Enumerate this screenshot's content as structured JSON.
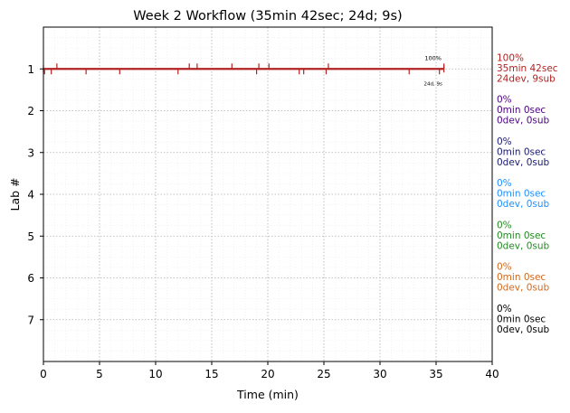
{
  "chart_data": {
    "type": "line",
    "title": "Week 2 Workflow (35min 42sec; 24d; 9s)",
    "xlabel": "Time (min)",
    "ylabel": "Lab #",
    "xlim": [
      0,
      40
    ],
    "ylim": [
      8,
      0
    ],
    "x_ticks": [
      "0",
      "5",
      "10",
      "15",
      "20",
      "25",
      "30",
      "35",
      "40"
    ],
    "y_ticks": [
      "1",
      "2",
      "3",
      "4",
      "5",
      "6",
      "7"
    ],
    "grid": true,
    "series": [
      {
        "lab": 1,
        "color": "#b22222",
        "x_start": 0.0,
        "x_end": 35.7,
        "percent_label": "100%",
        "time_label": "35min 42sec",
        "count_label": "24dev, 9sub",
        "inline_percent": "100%",
        "inline_counts": "24d, 9s",
        "dev_ticks_up": [
          1.2,
          13.0,
          13.7,
          16.8,
          19.2,
          20.1,
          25.4,
          35.7
        ],
        "dev_ticks_down": [
          0.1,
          0.7,
          3.8,
          6.8,
          12.0,
          19.0,
          22.8,
          23.2,
          25.2,
          32.6,
          35.3
        ]
      },
      {
        "lab": 2,
        "color": "#4b0082",
        "percent_label": "0%",
        "time_label": "0min 0sec",
        "count_label": "0dev, 0sub"
      },
      {
        "lab": 3,
        "color": "#191970",
        "percent_label": "0%",
        "time_label": "0min 0sec",
        "count_label": "0dev, 0sub"
      },
      {
        "lab": 4,
        "color": "#1e90ff",
        "percent_label": "0%",
        "time_label": "0min 0sec",
        "count_label": "0dev, 0sub"
      },
      {
        "lab": 5,
        "color": "#228b22",
        "percent_label": "0%",
        "time_label": "0min 0sec",
        "count_label": "0dev, 0sub"
      },
      {
        "lab": 6,
        "color": "#d2691e",
        "percent_label": "0%",
        "time_label": "0min 0sec",
        "count_label": "0dev, 0sub"
      },
      {
        "lab": 7,
        "color": "#000000",
        "percent_label": "0%",
        "time_label": "0min 0sec",
        "count_label": "0dev, 0sub"
      }
    ]
  }
}
